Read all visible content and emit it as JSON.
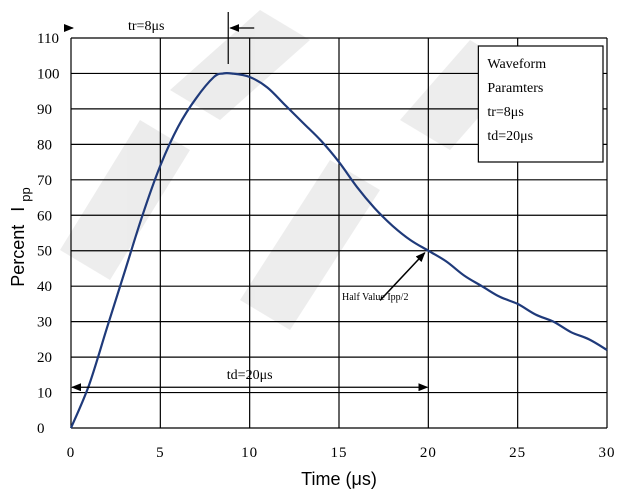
{
  "chart_data": {
    "type": "line",
    "xlabel": "Time (μs)",
    "ylabel_main": "Percent",
    "ylabel_var": "I",
    "ylabel_sub": "pp",
    "xlim": [
      0,
      30
    ],
    "ylim": [
      0,
      110
    ],
    "x_ticks": [
      "0",
      "5",
      "10",
      "15",
      "20",
      "25",
      "30"
    ],
    "y_ticks": [
      "0",
      "10",
      "20",
      "30",
      "40",
      "50",
      "60",
      "70",
      "80",
      "90",
      "100",
      "110"
    ],
    "grid": true,
    "series": [
      {
        "color": "#1f3a7a",
        "points": [
          [
            0,
            0
          ],
          [
            1,
            12
          ],
          [
            2,
            28
          ],
          [
            3,
            44
          ],
          [
            4,
            60
          ],
          [
            5,
            74
          ],
          [
            6,
            85
          ],
          [
            7,
            93
          ],
          [
            8,
            99
          ],
          [
            8.5,
            100
          ],
          [
            9,
            100
          ],
          [
            10,
            99
          ],
          [
            11,
            96
          ],
          [
            12,
            91
          ],
          [
            13,
            86
          ],
          [
            14,
            81
          ],
          [
            15,
            75
          ],
          [
            16,
            68
          ],
          [
            17,
            62
          ],
          [
            18,
            57
          ],
          [
            19,
            53
          ],
          [
            20,
            50
          ],
          [
            21,
            47
          ],
          [
            22,
            43
          ],
          [
            23,
            40
          ],
          [
            24,
            37
          ],
          [
            25,
            35
          ],
          [
            26,
            32
          ],
          [
            27,
            30
          ],
          [
            28,
            27
          ],
          [
            29,
            25
          ],
          [
            30,
            22
          ]
        ]
      }
    ],
    "annotations": {
      "tr_label": "tr=8μs",
      "td_label": "td=20μs",
      "half_value_label": "Half Value Ipp/2"
    },
    "legend_box": {
      "lines": [
        "Waveform",
        "Paramters",
        "tr=8μs",
        "td=20μs"
      ],
      "placement": "top-right"
    }
  }
}
